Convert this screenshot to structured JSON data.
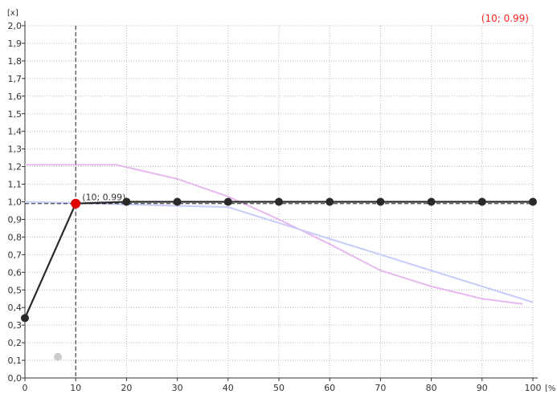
{
  "readout": {
    "text": "(10; 0.99)",
    "color": "#ff2020"
  },
  "chart_data": {
    "type": "line",
    "ylabel": "[x]",
    "xlabel": "[%",
    "xlim": [
      0,
      100
    ],
    "ylim": [
      0,
      2.0
    ],
    "grid": true,
    "x_ticks": [
      "0",
      "10",
      "20",
      "30",
      "40",
      "50",
      "60",
      "70",
      "80",
      "90",
      "100"
    ],
    "y_ticks": [
      "0,0",
      "0,1",
      "0,2",
      "0,3",
      "0,4",
      "0,5",
      "0,6",
      "0,7",
      "0,8",
      "0,9",
      "1,0",
      "1,1",
      "1,2",
      "1,3",
      "1,4",
      "1,5",
      "1,6",
      "1,7",
      "1,8",
      "1,9",
      "2,0"
    ],
    "series": [
      {
        "color": "#e8b8f0",
        "points": [
          [
            0,
            1.21
          ],
          [
            18,
            1.21
          ],
          [
            30,
            1.13
          ],
          [
            40,
            1.03
          ],
          [
            50,
            0.9
          ],
          [
            60,
            0.76
          ],
          [
            70,
            0.61
          ],
          [
            80,
            0.52
          ],
          [
            90,
            0.45
          ],
          [
            98,
            0.42
          ]
        ]
      },
      {
        "color": "#c8ccf8",
        "points": [
          [
            0,
            1.0
          ],
          [
            40,
            0.97
          ],
          [
            100,
            0.43
          ]
        ]
      },
      {
        "color": "#2a2a2a",
        "markers": true,
        "points": [
          [
            0,
            0.34
          ],
          [
            10,
            0.99
          ],
          [
            20,
            1.0
          ],
          [
            30,
            1.0
          ],
          [
            40,
            1.0
          ],
          [
            50,
            1.0
          ],
          [
            60,
            1.0
          ],
          [
            70,
            1.0
          ],
          [
            80,
            1.0
          ],
          [
            90,
            1.0
          ],
          [
            100,
            1.0
          ]
        ]
      }
    ],
    "selected_point": {
      "x": 10,
      "y": 0.99,
      "label": "(10; 0.99)",
      "color": "#e00000"
    },
    "crosshair": {
      "x": 10,
      "y": 0.99
    },
    "ghost_point": {
      "x": 6.5,
      "y": 0.12,
      "color": "#cccccc"
    }
  }
}
